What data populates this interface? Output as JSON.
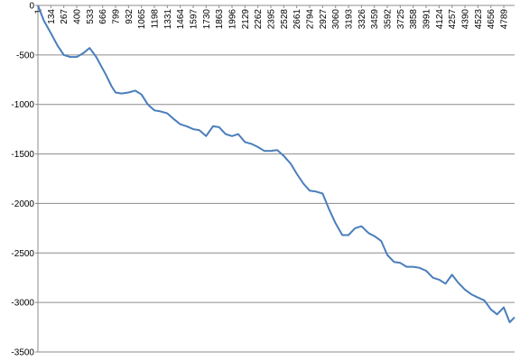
{
  "chart_data": {
    "type": "line",
    "title": "",
    "xlabel": "",
    "ylabel": "",
    "xlim": [
      1,
      4900
    ],
    "ylim": [
      -3500,
      0
    ],
    "grid": true,
    "legend": "none",
    "y_ticks": [
      "0",
      "-500",
      "-1000",
      "-1500",
      "-2000",
      "-2500",
      "-3000",
      "-3500"
    ],
    "y_tick_values": [
      0,
      -500,
      -1000,
      -1500,
      -2000,
      -2500,
      -3000,
      -3500
    ],
    "x_tick_labels": [
      "1",
      "134",
      "267",
      "400",
      "533",
      "666",
      "799",
      "932",
      "1065",
      "1198",
      "1331",
      "1464",
      "1597",
      "1730",
      "1863",
      "1996",
      "2129",
      "2262",
      "2395",
      "2528",
      "2661",
      "2794",
      "2927",
      "3060",
      "3193",
      "3326",
      "3459",
      "3592",
      "3725",
      "3858",
      "3991",
      "4124",
      "4257",
      "4390",
      "4523",
      "4656",
      "4789"
    ],
    "x_tick_values": [
      1,
      134,
      267,
      400,
      533,
      666,
      799,
      932,
      1065,
      1198,
      1331,
      1464,
      1597,
      1730,
      1863,
      1996,
      2129,
      2262,
      2395,
      2528,
      2661,
      2794,
      2927,
      3060,
      3193,
      3326,
      3459,
      3592,
      3725,
      3858,
      3991,
      4124,
      4257,
      4390,
      4523,
      4656,
      4789
    ],
    "series": [
      {
        "name": "",
        "color": "#4a7ebb",
        "x": [
          1,
          60,
          134,
          200,
          267,
          330,
          400,
          470,
          533,
          600,
          666,
          700,
          760,
          799,
          860,
          932,
          1000,
          1065,
          1130,
          1198,
          1260,
          1331,
          1400,
          1464,
          1530,
          1597,
          1660,
          1730,
          1800,
          1863,
          1930,
          1996,
          2060,
          2129,
          2200,
          2262,
          2330,
          2395,
          2460,
          2528,
          2600,
          2661,
          2730,
          2794,
          2860,
          2927,
          2990,
          3060,
          3130,
          3193,
          3260,
          3326,
          3400,
          3459,
          3530,
          3592,
          3660,
          3725,
          3790,
          3858,
          3920,
          3991,
          4060,
          4124,
          4190,
          4257,
          4320,
          4390,
          4460,
          4523,
          4590,
          4656,
          4720,
          4789,
          4850,
          4900
        ],
        "y": [
          0,
          -150,
          -280,
          -400,
          -500,
          -520,
          -520,
          -480,
          -430,
          -520,
          -640,
          -700,
          -820,
          -880,
          -890,
          -880,
          -860,
          -900,
          -1000,
          -1060,
          -1070,
          -1090,
          -1150,
          -1200,
          -1220,
          -1250,
          -1260,
          -1320,
          -1220,
          -1230,
          -1300,
          -1320,
          -1300,
          -1380,
          -1400,
          -1430,
          -1470,
          -1470,
          -1460,
          -1520,
          -1600,
          -1700,
          -1800,
          -1870,
          -1880,
          -1900,
          -2050,
          -2200,
          -2320,
          -2320,
          -2250,
          -2230,
          -2300,
          -2330,
          -2380,
          -2520,
          -2590,
          -2600,
          -2640,
          -2640,
          -2650,
          -2680,
          -2750,
          -2770,
          -2810,
          -2720,
          -2800,
          -2870,
          -2920,
          -2950,
          -2980,
          -3070,
          -3120,
          -3050,
          -3200,
          -3150
        ]
      }
    ]
  }
}
